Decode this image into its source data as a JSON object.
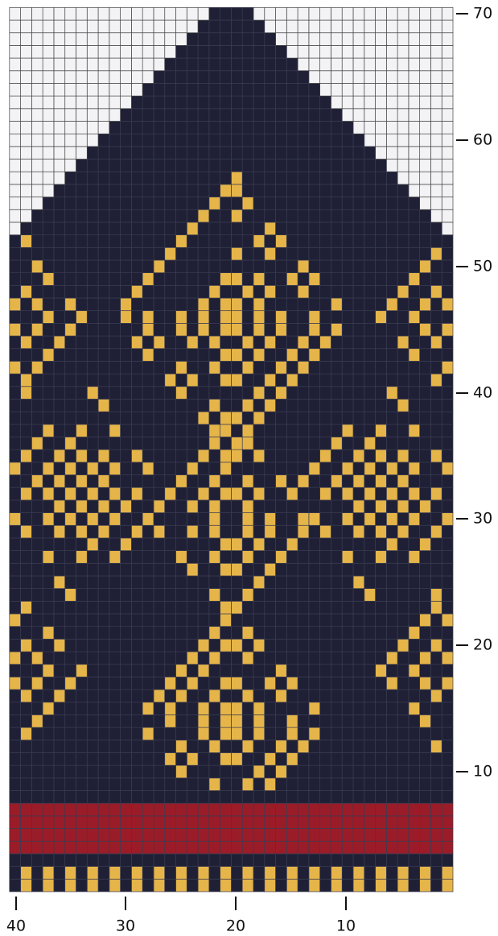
{
  "x_axis_labels": [
    "40",
    "30",
    "20",
    "10"
  ],
  "y_axis_labels": [
    "70",
    "60",
    "50",
    "40",
    "30",
    "20",
    "10"
  ]
}
